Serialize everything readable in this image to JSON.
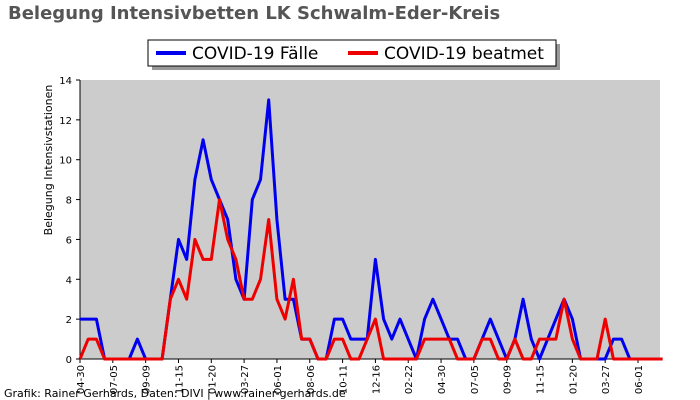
{
  "chart_data": {
    "type": "line",
    "title": "Belegung Intensivbetten LK Schwalm-Eder-Kreis",
    "ylabel": "Belegung Intensivstationen",
    "footer": "Grafik: Rainer Gerhards, Daten: DIVI | www.rainer-gerhards.de",
    "categories": [
      "04-30",
      null,
      null,
      null,
      "07-05",
      null,
      null,
      null,
      "09-09",
      null,
      null,
      null,
      "11-15",
      null,
      null,
      null,
      "01-20",
      null,
      null,
      null,
      "03-27",
      null,
      null,
      null,
      "06-01",
      null,
      null,
      null,
      "08-06",
      null,
      null,
      null,
      "10-11",
      null,
      null,
      null,
      "12-16",
      null,
      null,
      null,
      "02-22",
      null,
      null,
      null,
      "04-30",
      null,
      null,
      null,
      "07-05",
      null,
      null,
      null,
      "09-09",
      null,
      null,
      null,
      "11-15",
      null,
      null,
      null,
      "01-20",
      null,
      null,
      null,
      "03-27",
      null,
      null,
      null,
      "06-01",
      null,
      null,
      null
    ],
    "series": [
      {
        "name": "COVID-19 Fälle",
        "color": "#0000ee",
        "values": [
          2,
          2,
          2,
          0,
          0,
          0,
          0,
          1,
          0,
          0,
          0,
          3,
          6,
          5,
          9,
          11,
          9,
          8,
          7,
          4,
          3,
          8,
          9,
          13,
          7,
          3,
          3,
          1,
          1,
          0,
          0,
          2,
          2,
          1,
          1,
          1,
          5,
          2,
          1,
          2,
          1,
          0,
          2,
          3,
          2,
          1,
          1,
          0,
          0,
          1,
          2,
          1,
          0,
          1,
          3,
          1,
          0,
          1,
          2,
          3,
          2,
          0,
          0,
          0,
          0,
          1,
          1,
          0,
          0,
          0,
          0,
          0
        ]
      },
      {
        "name": "COVID-19 beatmet",
        "color": "#ee0000",
        "values": [
          0,
          1,
          1,
          0,
          0,
          0,
          0,
          0,
          0,
          0,
          0,
          3,
          4,
          3,
          6,
          5,
          5,
          8,
          6,
          5,
          3,
          3,
          4,
          7,
          3,
          2,
          4,
          1,
          1,
          0,
          0,
          1,
          1,
          0,
          0,
          1,
          2,
          0,
          0,
          0,
          0,
          0,
          1,
          1,
          1,
          1,
          0,
          0,
          0,
          1,
          1,
          0,
          0,
          1,
          0,
          0,
          1,
          1,
          1,
          3,
          1,
          0,
          0,
          0,
          2,
          0,
          0,
          0,
          0,
          0,
          0,
          0
        ]
      }
    ],
    "ylim": [
      0,
      14
    ],
    "yticks": [
      0,
      2,
      4,
      6,
      8,
      10,
      12,
      14
    ],
    "legend": "top"
  }
}
